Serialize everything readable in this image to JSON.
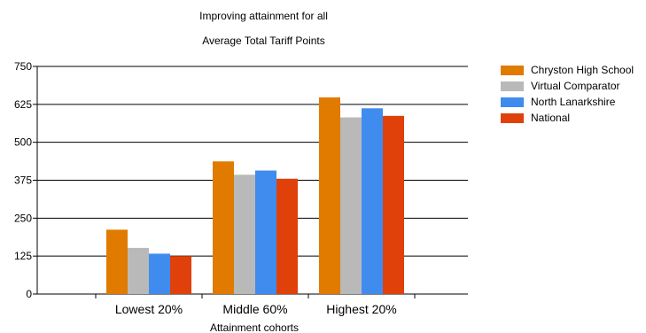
{
  "chart_data": {
    "type": "bar",
    "title": "Improving attainment for all",
    "subtitle": "Average Total Tariff Points",
    "xlabel": "Attainment cohorts",
    "ylabel": "",
    "categories": [
      "Lowest 20%",
      "Middle 60%",
      "Highest 20%"
    ],
    "ylim": [
      0,
      750
    ],
    "yticks": [
      0,
      125,
      250,
      375,
      500,
      625,
      750
    ],
    "ytick_labels": [
      "0",
      "125",
      "250",
      "375",
      "500",
      "625",
      "750"
    ],
    "grid": true,
    "legend_position": "top-right",
    "series": [
      {
        "name": "Chryston High School",
        "color": "#e07b00",
        "values": [
          212,
          437,
          648
        ]
      },
      {
        "name": "Virtual Comparator",
        "color": "#b9b9b9",
        "values": [
          152,
          393,
          582
        ]
      },
      {
        "name": "North Lanarkshire",
        "color": "#3f8cee",
        "values": [
          133,
          407,
          612
        ]
      },
      {
        "name": "National",
        "color": "#e0400a",
        "values": [
          125,
          380,
          587
        ]
      }
    ]
  }
}
